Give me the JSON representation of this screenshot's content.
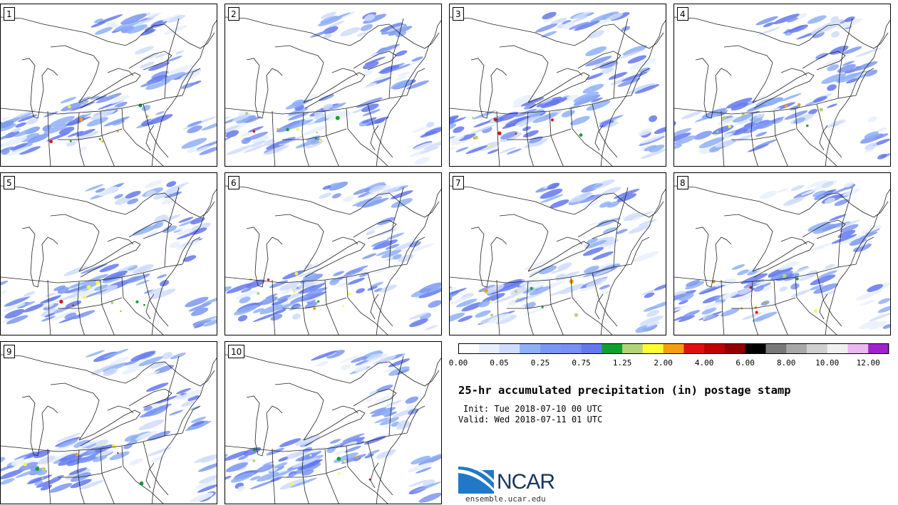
{
  "title": "25-hr accumulated precipitation (in) postage stamp",
  "init": "Init: Tue 2018-07-10 00 UTC",
  "valid": "Valid: Wed 2018-07-11 01 UTC",
  "logo_name": "NCAR",
  "site": "ensemble.ucar.edu",
  "panels": [
    "1",
    "2",
    "3",
    "4",
    "5",
    "6",
    "7",
    "8",
    "9",
    "10"
  ],
  "colorbar": {
    "colors": [
      "#ffffff",
      "#e8f0fd",
      "#cfdcfb",
      "#8eb0f7",
      "#7b97f2",
      "#7a8ff2",
      "#6478ee",
      "#10a030",
      "#b4d478",
      "#ffff30",
      "#f0a010",
      "#e01010",
      "#c00000",
      "#900000",
      "#000000",
      "#787878",
      "#a8a8a8",
      "#d0d0d0",
      "#f0f0f0",
      "#e8b8f0",
      "#a020d0"
    ],
    "tick_labels": [
      "0.00",
      "0.05",
      "0.25",
      "0.75",
      "1.25",
      "2.00",
      "4.00",
      "6.00",
      "8.00",
      "10.00",
      "12.00"
    ]
  }
}
